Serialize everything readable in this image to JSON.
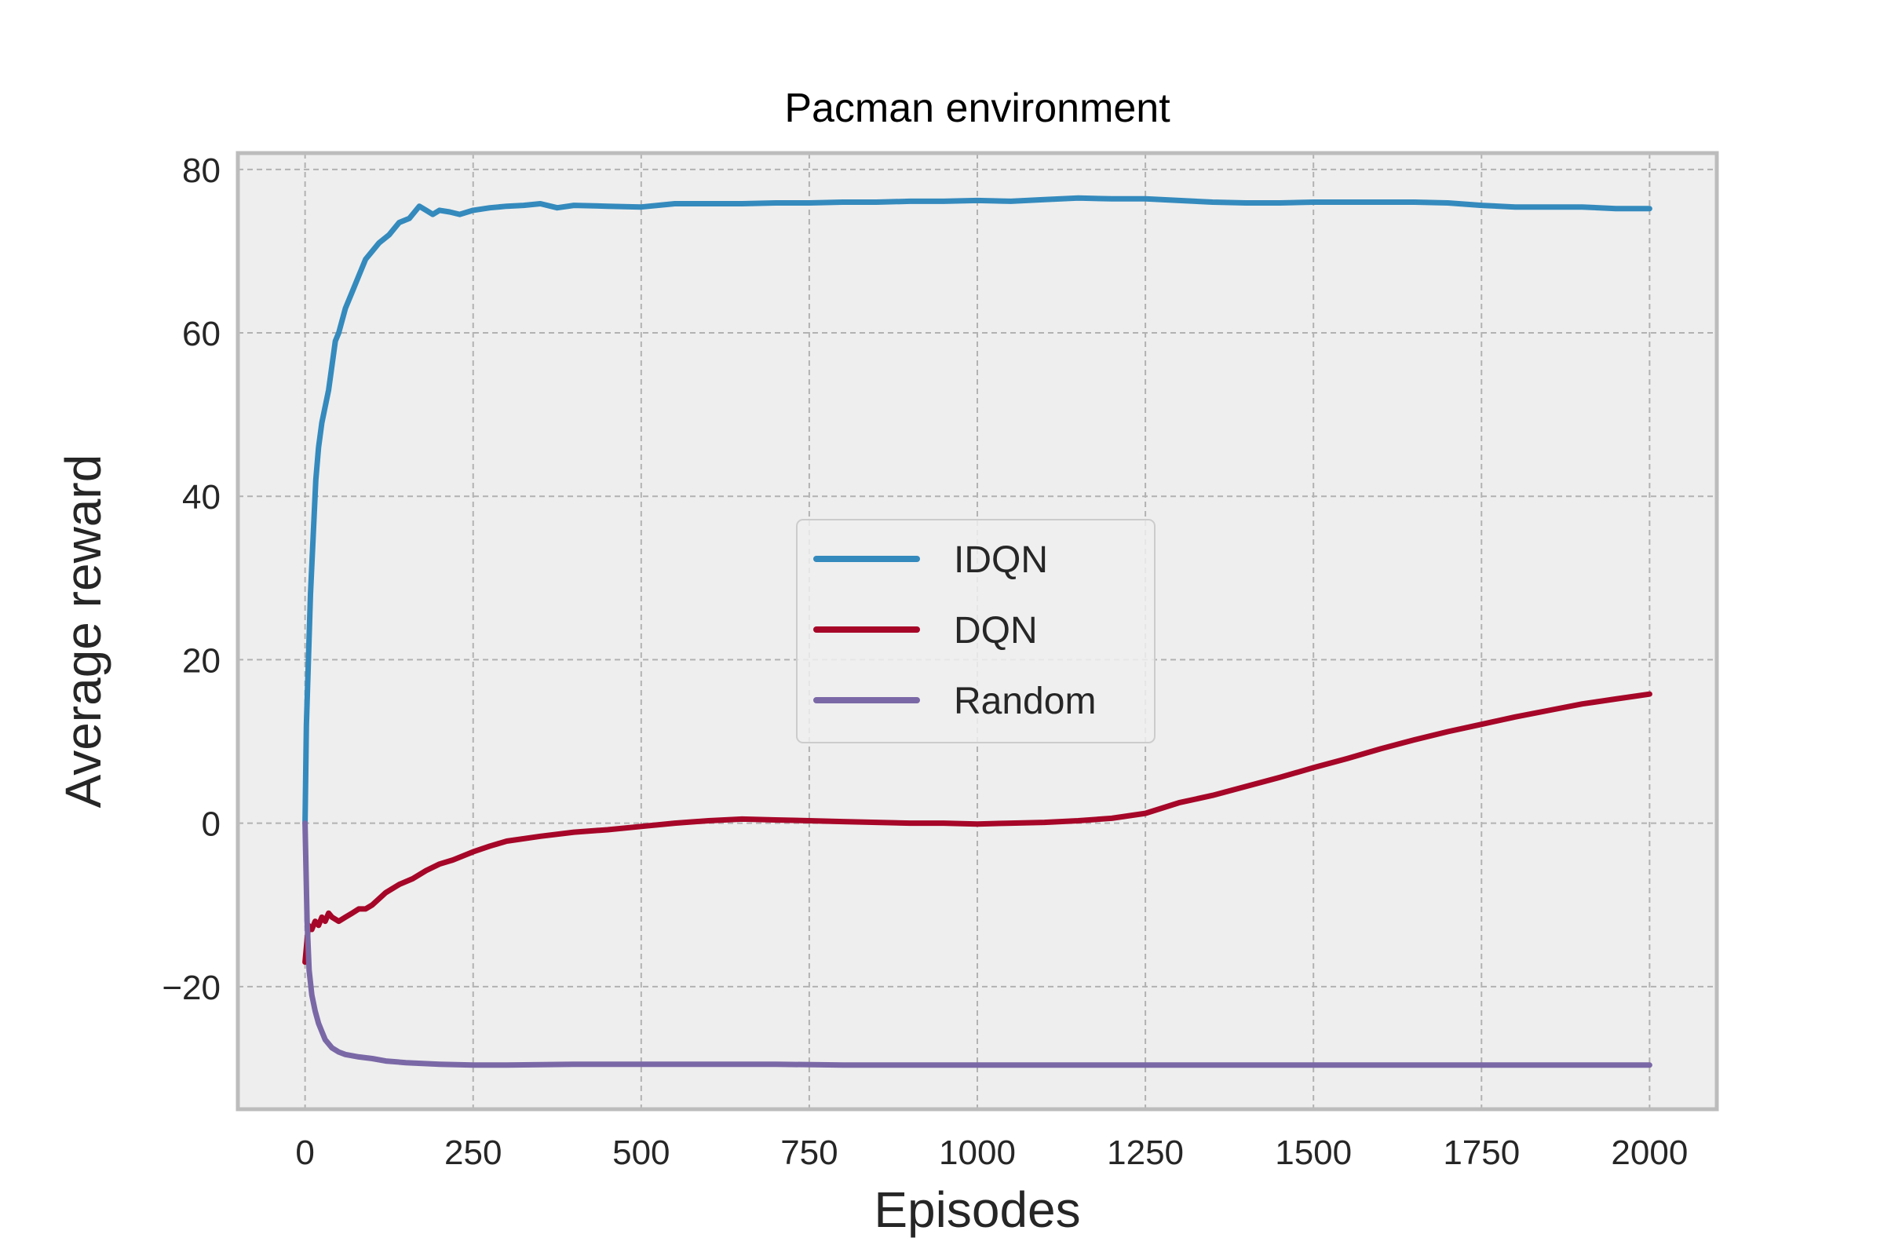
{
  "chart_data": {
    "type": "line",
    "title": "Pacman environment",
    "xlabel": "Episodes",
    "ylabel": "Average reward",
    "xlim": [
      -100,
      2100
    ],
    "ylim": [
      -35,
      82
    ],
    "xticks": [
      0,
      250,
      500,
      750,
      1000,
      1250,
      1500,
      1750,
      2000
    ],
    "yticks": [
      -20,
      0,
      20,
      40,
      60,
      80
    ],
    "xtick_labels": [
      "0",
      "250",
      "500",
      "750",
      "1000",
      "1250",
      "1500",
      "1750",
      "2000"
    ],
    "ytick_labels": [
      "−20",
      "0",
      "20",
      "40",
      "60",
      "80"
    ],
    "grid": true,
    "legend_position": "center",
    "series": [
      {
        "name": "IDQN",
        "color": "#348ABD",
        "x": [
          0,
          2,
          5,
          8,
          12,
          16,
          20,
          25,
          30,
          35,
          40,
          45,
          50,
          60,
          70,
          80,
          90,
          100,
          110,
          125,
          140,
          155,
          170,
          180,
          190,
          200,
          215,
          230,
          250,
          275,
          300,
          325,
          350,
          375,
          400,
          450,
          500,
          550,
          600,
          650,
          700,
          750,
          800,
          850,
          900,
          950,
          1000,
          1050,
          1100,
          1150,
          1200,
          1250,
          1300,
          1350,
          1400,
          1450,
          1500,
          1550,
          1600,
          1650,
          1700,
          1750,
          1800,
          1850,
          1900,
          1950,
          2000
        ],
        "values": [
          0,
          12,
          20,
          28,
          35,
          42,
          46,
          49,
          51,
          53,
          56,
          59,
          60,
          63,
          65,
          67,
          69,
          70,
          71,
          72,
          73.5,
          74,
          75.5,
          75,
          74.5,
          75,
          74.8,
          74.5,
          75,
          75.3,
          75.5,
          75.6,
          75.8,
          75.3,
          75.6,
          75.5,
          75.4,
          75.8,
          75.8,
          75.8,
          75.9,
          75.9,
          76.0,
          76.0,
          76.1,
          76.1,
          76.2,
          76.1,
          76.3,
          76.5,
          76.4,
          76.4,
          76.2,
          76.0,
          75.9,
          75.9,
          76.0,
          76.0,
          76.0,
          76.0,
          75.9,
          75.6,
          75.4,
          75.4,
          75.4,
          75.2,
          75.2
        ]
      },
      {
        "name": "DQN",
        "color": "#A60628",
        "x": [
          0,
          5,
          10,
          15,
          20,
          25,
          30,
          35,
          40,
          50,
          60,
          70,
          80,
          90,
          100,
          120,
          140,
          160,
          180,
          200,
          220,
          250,
          275,
          300,
          350,
          400,
          450,
          500,
          550,
          600,
          650,
          700,
          750,
          800,
          850,
          900,
          950,
          1000,
          1050,
          1100,
          1150,
          1200,
          1250,
          1300,
          1350,
          1400,
          1450,
          1500,
          1550,
          1600,
          1650,
          1700,
          1750,
          1800,
          1850,
          1900,
          1950,
          2000
        ],
        "values": [
          -17,
          -12.5,
          -13,
          -12,
          -12.5,
          -11.5,
          -12,
          -11,
          -11.5,
          -12,
          -11.5,
          -11,
          -10.5,
          -10.5,
          -10,
          -8.5,
          -7.5,
          -6.8,
          -5.8,
          -5,
          -4.5,
          -3.5,
          -2.8,
          -2.2,
          -1.6,
          -1.1,
          -0.8,
          -0.4,
          0,
          0.3,
          0.5,
          0.4,
          0.3,
          0.2,
          0.1,
          0,
          0,
          -0.1,
          0,
          0.1,
          0.3,
          0.6,
          1.2,
          2.5,
          3.4,
          4.5,
          5.6,
          6.8,
          7.9,
          9.1,
          10.2,
          11.2,
          12.1,
          13.0,
          13.8,
          14.6,
          15.2,
          15.8
        ]
      },
      {
        "name": "Random",
        "color": "#7A68A6",
        "x": [
          0,
          3,
          6,
          10,
          15,
          20,
          25,
          30,
          40,
          50,
          60,
          80,
          100,
          120,
          150,
          200,
          250,
          300,
          400,
          500,
          600,
          700,
          800,
          900,
          1000,
          1100,
          1200,
          1300,
          1400,
          1500,
          1600,
          1700,
          1800,
          1900,
          2000
        ],
        "values": [
          0,
          -12,
          -18,
          -21,
          -23,
          -24.5,
          -25.5,
          -26.5,
          -27.5,
          -28,
          -28.3,
          -28.6,
          -28.8,
          -29.1,
          -29.3,
          -29.5,
          -29.6,
          -29.6,
          -29.5,
          -29.5,
          -29.5,
          -29.5,
          -29.6,
          -29.6,
          -29.6,
          -29.6,
          -29.6,
          -29.6,
          -29.6,
          -29.6,
          -29.6,
          -29.6,
          -29.6,
          -29.6,
          -29.6
        ]
      }
    ]
  }
}
